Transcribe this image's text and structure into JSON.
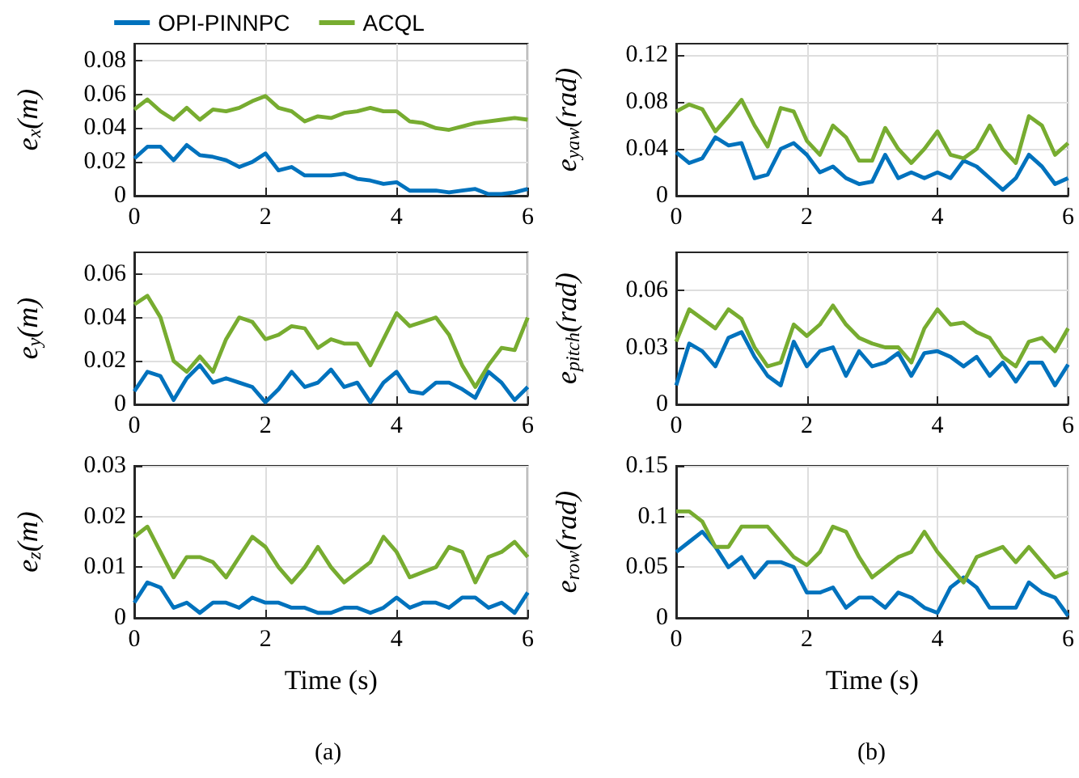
{
  "chart_data": [
    {
      "type": "line",
      "ylabel": "e$_{x}$(m)",
      "legend": "top",
      "grid": true,
      "xlim": [
        0,
        6
      ],
      "xticks": [
        0,
        2,
        4,
        6
      ],
      "ylim": [
        0,
        0.09
      ],
      "yticks": [
        0,
        0.02,
        0.04,
        0.06,
        0.08
      ],
      "x": [
        0,
        0.2,
        0.4,
        0.6,
        0.8,
        1.0,
        1.2,
        1.4,
        1.6,
        1.8,
        2.0,
        2.2,
        2.4,
        2.6,
        2.8,
        3.0,
        3.2,
        3.4,
        3.6,
        3.8,
        4.0,
        4.2,
        4.4,
        4.6,
        4.8,
        5.0,
        5.2,
        5.4,
        5.6,
        5.8,
        6.0
      ],
      "series": [
        {
          "name": "OPI-PINNPC",
          "color": "#0072bd",
          "values": [
            0.022,
            0.029,
            0.029,
            0.021,
            0.03,
            0.024,
            0.023,
            0.021,
            0.017,
            0.02,
            0.025,
            0.015,
            0.017,
            0.012,
            0.012,
            0.012,
            0.013,
            0.01,
            0.009,
            0.007,
            0.008,
            0.003,
            0.003,
            0.003,
            0.002,
            0.003,
            0.004,
            0.001,
            0.001,
            0.002,
            0.004
          ]
        },
        {
          "name": "ACQL",
          "color": "#77ac30",
          "values": [
            0.051,
            0.057,
            0.05,
            0.045,
            0.052,
            0.045,
            0.051,
            0.05,
            0.052,
            0.056,
            0.059,
            0.052,
            0.05,
            0.044,
            0.047,
            0.046,
            0.049,
            0.05,
            0.052,
            0.05,
            0.05,
            0.044,
            0.043,
            0.04,
            0.039,
            0.041,
            0.043,
            0.044,
            0.045,
            0.046,
            0.045
          ]
        }
      ]
    },
    {
      "type": "line",
      "ylabel": "e$_{yaw}$(rad)",
      "grid": true,
      "xlim": [
        0,
        6
      ],
      "xticks": [
        0,
        2,
        4,
        6
      ],
      "ylim": [
        0,
        0.13
      ],
      "yticks": [
        0,
        0.04,
        0.08,
        0.12
      ],
      "x": [
        0,
        0.2,
        0.4,
        0.6,
        0.8,
        1.0,
        1.2,
        1.4,
        1.6,
        1.8,
        2.0,
        2.2,
        2.4,
        2.6,
        2.8,
        3.0,
        3.2,
        3.4,
        3.6,
        3.8,
        4.0,
        4.2,
        4.4,
        4.6,
        4.8,
        5.0,
        5.2,
        5.4,
        5.6,
        5.8,
        6.0
      ],
      "series": [
        {
          "color": "#0072bd",
          "values": [
            0.037,
            0.028,
            0.032,
            0.05,
            0.043,
            0.045,
            0.015,
            0.018,
            0.04,
            0.045,
            0.035,
            0.02,
            0.025,
            0.015,
            0.01,
            0.012,
            0.035,
            0.015,
            0.02,
            0.015,
            0.02,
            0.015,
            0.03,
            0.025,
            0.015,
            0.005,
            0.015,
            0.035,
            0.025,
            0.01,
            0.015
          ]
        },
        {
          "color": "#77ac30",
          "values": [
            0.072,
            0.078,
            0.074,
            0.055,
            0.068,
            0.082,
            0.06,
            0.042,
            0.075,
            0.072,
            0.047,
            0.035,
            0.06,
            0.05,
            0.03,
            0.03,
            0.058,
            0.04,
            0.028,
            0.04,
            0.055,
            0.035,
            0.032,
            0.04,
            0.06,
            0.04,
            0.028,
            0.068,
            0.06,
            0.035,
            0.045
          ]
        }
      ]
    },
    {
      "type": "line",
      "ylabel": "e$_{y}$(m)",
      "grid": true,
      "xlim": [
        0,
        6
      ],
      "xticks": [
        0,
        2,
        4,
        6
      ],
      "ylim": [
        0,
        0.07
      ],
      "yticks": [
        0,
        0.02,
        0.04,
        0.06
      ],
      "x": [
        0,
        0.2,
        0.4,
        0.6,
        0.8,
        1.0,
        1.2,
        1.4,
        1.6,
        1.8,
        2.0,
        2.2,
        2.4,
        2.6,
        2.8,
        3.0,
        3.2,
        3.4,
        3.6,
        3.8,
        4.0,
        4.2,
        4.4,
        4.6,
        4.8,
        5.0,
        5.2,
        5.4,
        5.6,
        5.8,
        6.0
      ],
      "series": [
        {
          "color": "#0072bd",
          "values": [
            0.006,
            0.015,
            0.013,
            0.002,
            0.012,
            0.018,
            0.01,
            0.012,
            0.01,
            0.008,
            0.001,
            0.007,
            0.015,
            0.008,
            0.01,
            0.016,
            0.008,
            0.01,
            0.001,
            0.01,
            0.015,
            0.006,
            0.005,
            0.01,
            0.01,
            0.007,
            0.003,
            0.015,
            0.01,
            0.002,
            0.008
          ]
        },
        {
          "color": "#77ac30",
          "values": [
            0.046,
            0.05,
            0.04,
            0.02,
            0.015,
            0.022,
            0.015,
            0.03,
            0.04,
            0.038,
            0.03,
            0.032,
            0.036,
            0.035,
            0.026,
            0.03,
            0.028,
            0.028,
            0.018,
            0.03,
            0.042,
            0.036,
            0.038,
            0.04,
            0.032,
            0.018,
            0.008,
            0.018,
            0.026,
            0.025,
            0.04
          ]
        }
      ]
    },
    {
      "type": "line",
      "ylabel": "e$_{pitch}$(rad)",
      "grid": true,
      "xlim": [
        0,
        6
      ],
      "xticks": [
        0,
        2,
        4,
        6
      ],
      "ylim": [
        0,
        0.08
      ],
      "yticks": [
        0,
        0.03,
        0.06
      ],
      "x": [
        0,
        0.2,
        0.4,
        0.6,
        0.8,
        1.0,
        1.2,
        1.4,
        1.6,
        1.8,
        2.0,
        2.2,
        2.4,
        2.6,
        2.8,
        3.0,
        3.2,
        3.4,
        3.6,
        3.8,
        4.0,
        4.2,
        4.4,
        4.6,
        4.8,
        5.0,
        5.2,
        5.4,
        5.6,
        5.8,
        6.0
      ],
      "series": [
        {
          "color": "#0072bd",
          "values": [
            0.01,
            0.032,
            0.028,
            0.02,
            0.035,
            0.038,
            0.025,
            0.015,
            0.01,
            0.033,
            0.02,
            0.028,
            0.03,
            0.015,
            0.028,
            0.02,
            0.022,
            0.027,
            0.015,
            0.027,
            0.028,
            0.025,
            0.02,
            0.025,
            0.015,
            0.022,
            0.012,
            0.022,
            0.022,
            0.01,
            0.021
          ]
        },
        {
          "color": "#77ac30",
          "values": [
            0.033,
            0.05,
            0.045,
            0.04,
            0.05,
            0.045,
            0.03,
            0.02,
            0.022,
            0.042,
            0.036,
            0.042,
            0.052,
            0.042,
            0.035,
            0.032,
            0.03,
            0.03,
            0.022,
            0.04,
            0.05,
            0.042,
            0.043,
            0.038,
            0.035,
            0.025,
            0.02,
            0.033,
            0.035,
            0.028,
            0.04
          ]
        }
      ]
    },
    {
      "type": "line",
      "ylabel": "e$_{z}$(m)",
      "xlabel": "Time (s)",
      "annotations": [
        "(a)"
      ],
      "grid": true,
      "xlim": [
        0,
        6
      ],
      "xticks": [
        0,
        2,
        4,
        6
      ],
      "ylim": [
        0,
        0.03
      ],
      "yticks": [
        0,
        0.01,
        0.02,
        0.03
      ],
      "x": [
        0,
        0.2,
        0.4,
        0.6,
        0.8,
        1.0,
        1.2,
        1.4,
        1.6,
        1.8,
        2.0,
        2.2,
        2.4,
        2.6,
        2.8,
        3.0,
        3.2,
        3.4,
        3.6,
        3.8,
        4.0,
        4.2,
        4.4,
        4.6,
        4.8,
        5.0,
        5.2,
        5.4,
        5.6,
        5.8,
        6.0
      ],
      "series": [
        {
          "color": "#0072bd",
          "values": [
            0.003,
            0.007,
            0.006,
            0.002,
            0.003,
            0.001,
            0.003,
            0.003,
            0.002,
            0.004,
            0.003,
            0.003,
            0.002,
            0.002,
            0.001,
            0.001,
            0.002,
            0.002,
            0.001,
            0.002,
            0.004,
            0.002,
            0.003,
            0.003,
            0.002,
            0.004,
            0.004,
            0.002,
            0.003,
            0.001,
            0.005
          ]
        },
        {
          "color": "#77ac30",
          "values": [
            0.016,
            0.018,
            0.013,
            0.008,
            0.012,
            0.012,
            0.011,
            0.008,
            0.012,
            0.016,
            0.014,
            0.01,
            0.007,
            0.01,
            0.014,
            0.01,
            0.007,
            0.009,
            0.011,
            0.016,
            0.013,
            0.008,
            0.009,
            0.01,
            0.014,
            0.013,
            0.007,
            0.012,
            0.013,
            0.015,
            0.012
          ]
        }
      ]
    },
    {
      "type": "line",
      "ylabel": "e$_{row}$(rad)",
      "xlabel": "Time (s)",
      "annotations": [
        "(b)"
      ],
      "grid": true,
      "xlim": [
        0,
        6
      ],
      "xticks": [
        0,
        2,
        4,
        6
      ],
      "ylim": [
        0,
        0.15
      ],
      "yticks": [
        0,
        0.05,
        0.1,
        0.15
      ],
      "x": [
        0,
        0.2,
        0.4,
        0.6,
        0.8,
        1.0,
        1.2,
        1.4,
        1.6,
        1.8,
        2.0,
        2.2,
        2.4,
        2.6,
        2.8,
        3.0,
        3.2,
        3.4,
        3.6,
        3.8,
        4.0,
        4.2,
        4.4,
        4.6,
        4.8,
        5.0,
        5.2,
        5.4,
        5.6,
        5.8,
        6.0
      ],
      "series": [
        {
          "color": "#0072bd",
          "values": [
            0.065,
            0.075,
            0.085,
            0.07,
            0.05,
            0.06,
            0.04,
            0.055,
            0.055,
            0.05,
            0.025,
            0.025,
            0.03,
            0.01,
            0.02,
            0.02,
            0.01,
            0.025,
            0.02,
            0.01,
            0.005,
            0.03,
            0.04,
            0.03,
            0.01,
            0.01,
            0.01,
            0.035,
            0.025,
            0.02,
            0.002
          ]
        },
        {
          "color": "#77ac30",
          "values": [
            0.105,
            0.105,
            0.095,
            0.07,
            0.07,
            0.09,
            0.09,
            0.09,
            0.075,
            0.06,
            0.052,
            0.065,
            0.09,
            0.085,
            0.06,
            0.04,
            0.05,
            0.06,
            0.065,
            0.085,
            0.065,
            0.05,
            0.035,
            0.06,
            0.065,
            0.07,
            0.055,
            0.07,
            0.055,
            0.04,
            0.045
          ]
        }
      ]
    }
  ]
}
